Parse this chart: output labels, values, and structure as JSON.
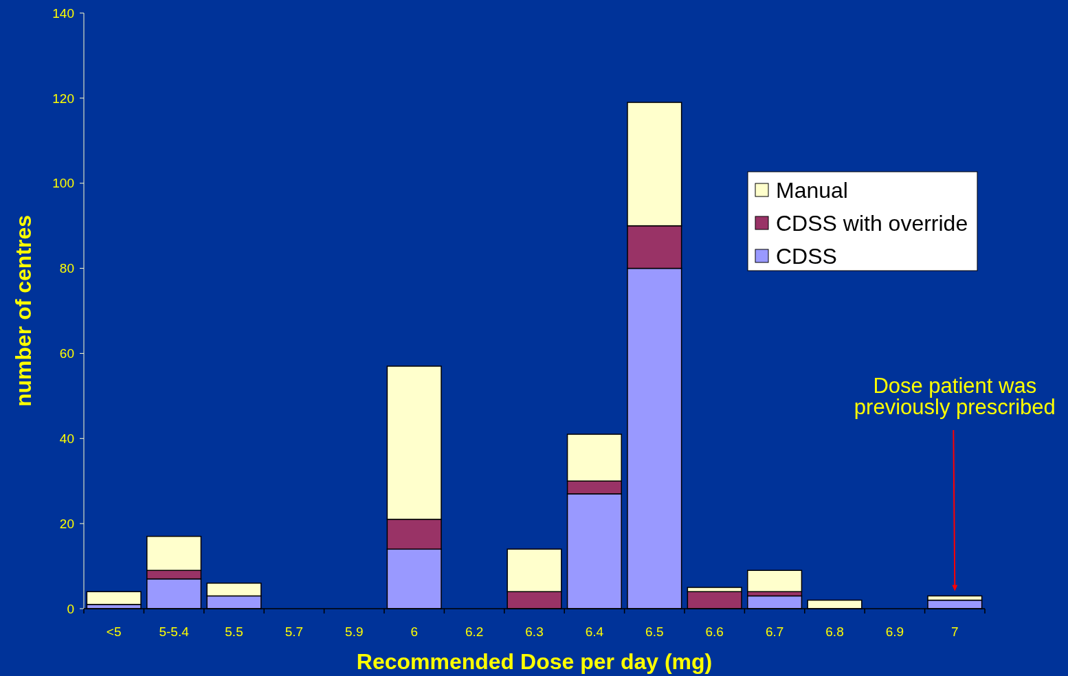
{
  "chart_data": {
    "type": "bar",
    "stacked": true,
    "xlabel": "Recommended Dose per day (mg)",
    "ylabel": "number of centres",
    "categories": [
      "<5",
      "5-5.4",
      "5.5",
      "5.7",
      "5.9",
      "6",
      "6.2",
      "6.3",
      "6.4",
      "6.5",
      "6.6",
      "6.7",
      "6.8",
      "6.9",
      "7"
    ],
    "series": [
      {
        "name": "CDSS",
        "color": "#9999ff",
        "values": [
          1,
          7,
          3,
          0,
          0,
          14,
          0,
          0,
          27,
          80,
          0,
          3,
          0,
          0,
          2
        ]
      },
      {
        "name": "CDSS with override",
        "color": "#993366",
        "values": [
          0,
          2,
          0,
          0,
          0,
          7,
          0,
          4,
          3,
          10,
          4,
          1,
          0,
          0,
          0
        ]
      },
      {
        "name": "Manual",
        "color": "#ffffcc",
        "values": [
          3,
          8,
          3,
          0,
          0,
          36,
          0,
          10,
          11,
          29,
          1,
          5,
          2,
          0,
          1
        ]
      }
    ],
    "ylim": [
      0,
      140
    ],
    "yticks": [
      0,
      20,
      40,
      60,
      80,
      100,
      120,
      140
    ],
    "grid": false,
    "legend": "right",
    "annotations": [
      "Dose patient was previously prescribed"
    ]
  }
}
